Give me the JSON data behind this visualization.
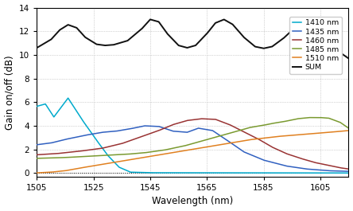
{
  "title": "",
  "xlabel": "Wavelength (nm)",
  "ylabel": "Gain on/off (dB)",
  "xlim": [
    1505,
    1615
  ],
  "ylim": [
    -0.3,
    14
  ],
  "yticks": [
    0,
    2,
    4,
    6,
    8,
    10,
    12,
    14
  ],
  "xticks": [
    1505,
    1525,
    1545,
    1565,
    1585,
    1605
  ],
  "legend_labels": [
    "1410 nm",
    "1435 nm",
    "1460 nm",
    "1485 nm",
    "1510 nm",
    "SUM"
  ],
  "colors": {
    "1410": "#00AACC",
    "1435": "#3060C0",
    "1460": "#993333",
    "1485": "#7A9A30",
    "1510": "#E08020",
    "SUM": "#111111"
  },
  "background_color": "#ffffff"
}
